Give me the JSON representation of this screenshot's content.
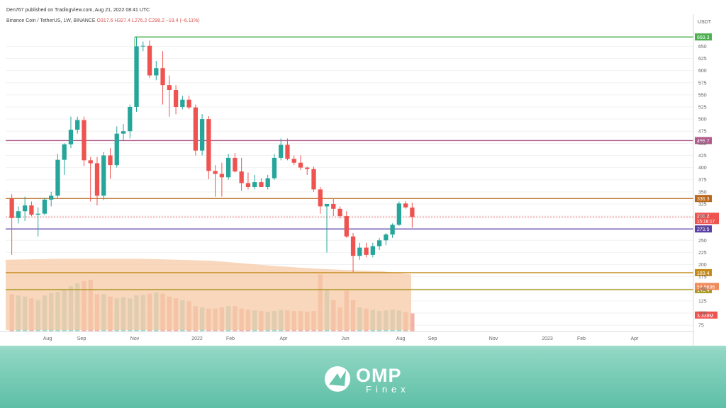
{
  "header": {
    "published": "Den767 published on TradingView.com, Aug 21, 2022 08:41 UTC",
    "symbol": "Binance Coin / TetherUS, 1W, BINANCE",
    "ohlc": "O317.6 H327.4 L276.2 C298.2 −19.4 (−6.11%)"
  },
  "colors": {
    "up": "#26a69a",
    "down": "#ef5350",
    "volume_up": "#8fd0c4",
    "volume_down": "#f0a49c"
  },
  "chart_data": {
    "type": "candlestick",
    "currency": "USDT",
    "yticks": [
      75,
      100,
      125,
      150,
      175,
      200,
      225,
      250,
      275,
      300,
      325,
      350,
      375,
      400,
      425,
      450,
      475,
      500,
      525,
      550,
      575,
      600,
      625,
      650
    ],
    "ylim": [
      65,
      690
    ],
    "x_labels": [
      "Aug",
      "Sep",
      "Nov",
      "2022",
      "Feb",
      "Apr",
      "Jun",
      "Aug",
      "Sep",
      "Nov",
      "2023",
      "Feb",
      "Apr"
    ],
    "levels": [
      {
        "label": "669.3",
        "value": 669.3,
        "color": "#4caf50"
      },
      {
        "label": "455.7",
        "value": 455.7,
        "color": "#b05c8c"
      },
      {
        "label": "336.3",
        "value": 336.3,
        "color": "#b8661a"
      },
      {
        "label": "273.5",
        "value": 273.5,
        "color": "#5b3fa8"
      },
      {
        "label": "183.4",
        "value": 183.4,
        "color": "#c58a1a"
      },
      {
        "label": "148.4",
        "value": 148.4,
        "color": "#a8961a"
      }
    ],
    "price_label": {
      "value": "298.2",
      "countdown": "15:18:17",
      "color": "#ef5350"
    },
    "ma_label": {
      "value": "54.9636",
      "color": "#ef8a5a"
    },
    "volume_label": {
      "value": "3.338M",
      "color": "#ef5350"
    },
    "candles": [
      {
        "o": 336,
        "h": 345,
        "l": 220,
        "c": 296
      },
      {
        "o": 296,
        "h": 320,
        "l": 285,
        "c": 310
      },
      {
        "o": 310,
        "h": 340,
        "l": 290,
        "c": 322
      },
      {
        "o": 322,
        "h": 330,
        "l": 300,
        "c": 303
      },
      {
        "o": 303,
        "h": 318,
        "l": 258,
        "c": 305
      },
      {
        "o": 305,
        "h": 338,
        "l": 302,
        "c": 334
      },
      {
        "o": 334,
        "h": 350,
        "l": 320,
        "c": 342
      },
      {
        "o": 342,
        "h": 428,
        "l": 338,
        "c": 416
      },
      {
        "o": 416,
        "h": 450,
        "l": 385,
        "c": 448
      },
      {
        "o": 448,
        "h": 505,
        "l": 440,
        "c": 478
      },
      {
        "o": 478,
        "h": 505,
        "l": 470,
        "c": 498
      },
      {
        "o": 498,
        "h": 505,
        "l": 403,
        "c": 415
      },
      {
        "o": 415,
        "h": 422,
        "l": 330,
        "c": 409
      },
      {
        "o": 409,
        "h": 422,
        "l": 322,
        "c": 342
      },
      {
        "o": 342,
        "h": 432,
        "l": 333,
        "c": 425
      },
      {
        "o": 425,
        "h": 440,
        "l": 377,
        "c": 405
      },
      {
        "o": 405,
        "h": 485,
        "l": 400,
        "c": 470
      },
      {
        "o": 470,
        "h": 490,
        "l": 455,
        "c": 475
      },
      {
        "o": 475,
        "h": 530,
        "l": 460,
        "c": 525
      },
      {
        "o": 525,
        "h": 669,
        "l": 515,
        "c": 650
      },
      {
        "o": 650,
        "h": 660,
        "l": 640,
        "c": 651
      },
      {
        "o": 651,
        "h": 662,
        "l": 585,
        "c": 590
      },
      {
        "o": 590,
        "h": 620,
        "l": 580,
        "c": 605
      },
      {
        "o": 605,
        "h": 640,
        "l": 530,
        "c": 570
      },
      {
        "o": 570,
        "h": 590,
        "l": 505,
        "c": 560
      },
      {
        "o": 560,
        "h": 570,
        "l": 510,
        "c": 525
      },
      {
        "o": 525,
        "h": 548,
        "l": 520,
        "c": 540
      },
      {
        "o": 540,
        "h": 548,
        "l": 520,
        "c": 524
      },
      {
        "o": 524,
        "h": 530,
        "l": 425,
        "c": 435
      },
      {
        "o": 435,
        "h": 510,
        "l": 425,
        "c": 500
      },
      {
        "o": 500,
        "h": 506,
        "l": 376,
        "c": 393
      },
      {
        "o": 393,
        "h": 405,
        "l": 340,
        "c": 387
      },
      {
        "o": 387,
        "h": 410,
        "l": 340,
        "c": 380
      },
      {
        "o": 380,
        "h": 428,
        "l": 375,
        "c": 420
      },
      {
        "o": 420,
        "h": 430,
        "l": 390,
        "c": 392
      },
      {
        "o": 392,
        "h": 420,
        "l": 352,
        "c": 368
      },
      {
        "o": 368,
        "h": 390,
        "l": 355,
        "c": 360
      },
      {
        "o": 360,
        "h": 385,
        "l": 355,
        "c": 370
      },
      {
        "o": 370,
        "h": 378,
        "l": 360,
        "c": 360
      },
      {
        "o": 360,
        "h": 385,
        "l": 355,
        "c": 378
      },
      {
        "o": 378,
        "h": 428,
        "l": 375,
        "c": 420
      },
      {
        "o": 420,
        "h": 460,
        "l": 415,
        "c": 447
      },
      {
        "o": 447,
        "h": 460,
        "l": 415,
        "c": 418
      },
      {
        "o": 418,
        "h": 425,
        "l": 405,
        "c": 410
      },
      {
        "o": 410,
        "h": 425,
        "l": 395,
        "c": 400
      },
      {
        "o": 400,
        "h": 402,
        "l": 385,
        "c": 397
      },
      {
        "o": 397,
        "h": 402,
        "l": 350,
        "c": 355
      },
      {
        "o": 355,
        "h": 360,
        "l": 305,
        "c": 320
      },
      {
        "o": 320,
        "h": 325,
        "l": 225,
        "c": 325
      },
      {
        "o": 325,
        "h": 335,
        "l": 300,
        "c": 315
      },
      {
        "o": 315,
        "h": 320,
        "l": 295,
        "c": 300
      },
      {
        "o": 300,
        "h": 310,
        "l": 255,
        "c": 258
      },
      {
        "o": 258,
        "h": 265,
        "l": 185,
        "c": 218
      },
      {
        "o": 218,
        "h": 245,
        "l": 210,
        "c": 235
      },
      {
        "o": 235,
        "h": 245,
        "l": 215,
        "c": 220
      },
      {
        "o": 220,
        "h": 245,
        "l": 215,
        "c": 238
      },
      {
        "o": 238,
        "h": 255,
        "l": 230,
        "c": 250
      },
      {
        "o": 250,
        "h": 265,
        "l": 240,
        "c": 262
      },
      {
        "o": 262,
        "h": 285,
        "l": 255,
        "c": 282
      },
      {
        "o": 282,
        "h": 330,
        "l": 280,
        "c": 326
      },
      {
        "o": 326,
        "h": 331,
        "l": 315,
        "c": 318
      },
      {
        "o": 317.6,
        "h": 327.4,
        "l": 276.2,
        "c": 298.2
      }
    ],
    "volumes": [
      62,
      60,
      58,
      55,
      52,
      60,
      64,
      66,
      70,
      75,
      80,
      84,
      86,
      62,
      62,
      58,
      55,
      57,
      55,
      60,
      61,
      63,
      65,
      63,
      58,
      55,
      52,
      50,
      42,
      40,
      38,
      38,
      40,
      42,
      42,
      38,
      36,
      35,
      34,
      33,
      34,
      36,
      35,
      34,
      34,
      33,
      34,
      95,
      70,
      52,
      40,
      68,
      52,
      40,
      38,
      36,
      34,
      35,
      36,
      35,
      32,
      30
    ]
  },
  "logo": {
    "name": "OMP",
    "sub": "Finex"
  }
}
